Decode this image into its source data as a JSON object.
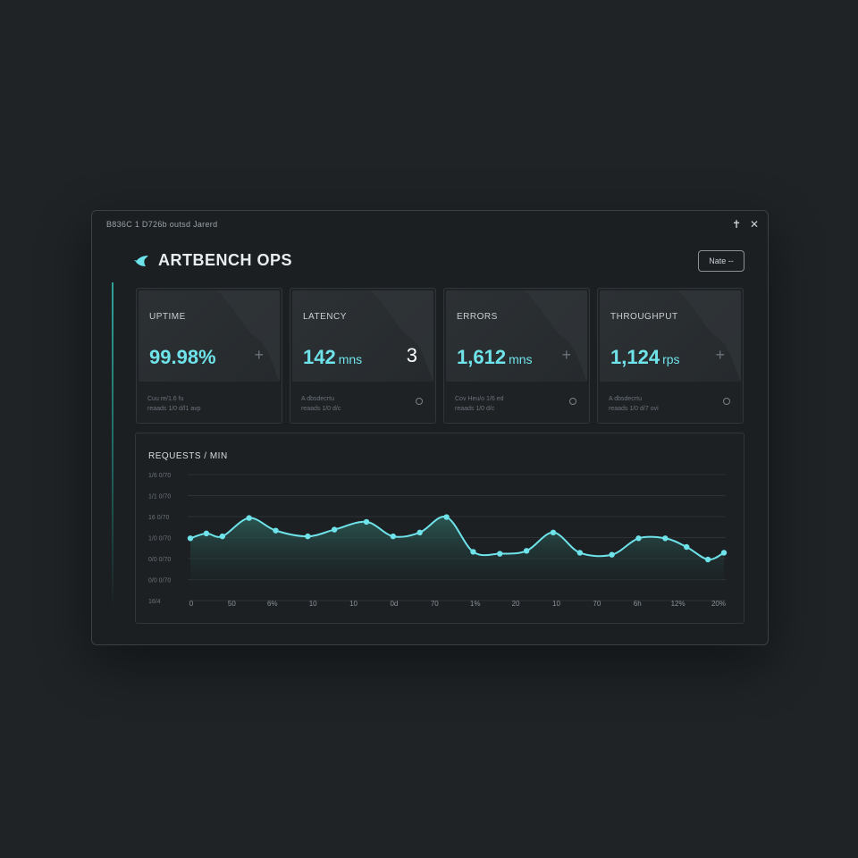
{
  "window": {
    "title_text": "B836C 1 D726b outsd Jarerd",
    "pin_glyph": "✝",
    "close_glyph": "✕"
  },
  "header": {
    "brand_name": "ARTBENCH OPS",
    "menu_button_label": "Nate  --"
  },
  "cards": [
    {
      "label": "UPTIME",
      "value": "99.98%",
      "unit": "",
      "action": "+",
      "foot1": "Cuu re/1.6 fu",
      "foot2": "reaads 1/0 d/l1 avp",
      "foot_icon": ""
    },
    {
      "label": "LATENCY",
      "value": "142",
      "unit": "mns",
      "action": "3",
      "foot1": "A dbsdecrtu",
      "foot2": "reaads 1/0 d/c",
      "foot_icon": "⚙"
    },
    {
      "label": "ERRORS",
      "value": "1,612",
      "unit": "mns",
      "action": "+",
      "foot1": "Cov Heu/o 1/6 ed",
      "foot2": "reaads 1/0 d/c",
      "foot_icon": "⚙"
    },
    {
      "label": "THROUGHPUT",
      "value": "1,124",
      "unit": "rps",
      "action": "+",
      "foot1": "A dbsdecrtu",
      "foot2": "reaads 1/0 d/7 ovi",
      "foot_icon": "⚙"
    }
  ],
  "chart_data": {
    "type": "area",
    "title": "REQUESTS /  MIN",
    "ytick_labels": [
      "1/6 0/70",
      "1/1 0/70",
      "16 0/70",
      "1/0 0/70",
      "0/0 0/70",
      "0/0 0/70",
      "16/4"
    ],
    "xtick_labels": [
      "0",
      "50",
      "6%",
      "10",
      "10",
      "0d",
      "70",
      "1%",
      "20",
      "10",
      "70",
      "6h",
      "12%",
      "20%"
    ],
    "x": [
      0,
      3,
      6,
      11,
      16,
      22,
      27,
      33,
      38,
      43,
      48,
      53,
      58,
      63,
      68,
      73,
      79,
      84,
      89,
      93,
      97,
      100
    ],
    "values": [
      0.34,
      0.39,
      0.36,
      0.55,
      0.42,
      0.36,
      0.43,
      0.51,
      0.36,
      0.4,
      0.56,
      0.2,
      0.18,
      0.21,
      0.4,
      0.19,
      0.17,
      0.34,
      0.34,
      0.25,
      0.12,
      0.19
    ],
    "ylim": [
      0,
      1
    ],
    "grid": true,
    "color": "#6fe3ea"
  },
  "colors": {
    "accent": "#6fe3ea",
    "background": "#1f2326",
    "panel": "#1b1f22"
  }
}
